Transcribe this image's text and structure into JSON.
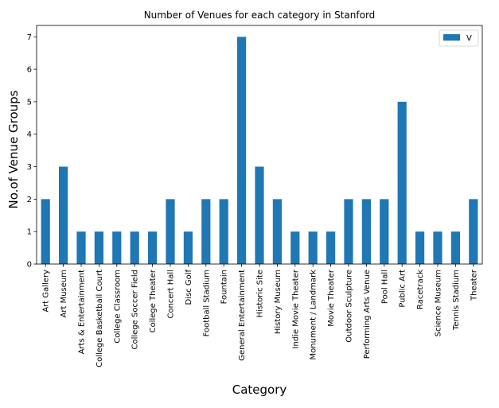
{
  "chart_data": {
    "type": "bar",
    "title": "Number of Venues for each category in Stanford",
    "xlabel": "Category",
    "ylabel": "No.of Venue Groups",
    "categories": [
      "Art Gallery",
      "Art Museum",
      "Arts & Entertainment",
      "College Basketball Court",
      "College Classroom",
      "College Soccer Field",
      "College Theater",
      "Concert Hall",
      "Disc Golf",
      "Football Stadium",
      "Fountain",
      "General Entertainment",
      "Historic Site",
      "History Museum",
      "Indie Movie Theater",
      "Monument / Landmark",
      "Movie Theater",
      "Outdoor Sculpture",
      "Performing Arts Venue",
      "Pool Hall",
      "Public Art",
      "Racetrack",
      "Science Museum",
      "Tennis Stadium",
      "Theater"
    ],
    "series": [
      {
        "name": "V",
        "color": "#1f77b4",
        "values": [
          2,
          3,
          1,
          1,
          1,
          1,
          1,
          2,
          1,
          2,
          2,
          7,
          3,
          2,
          1,
          1,
          1,
          2,
          2,
          2,
          5,
          1,
          1,
          1,
          2
        ]
      }
    ],
    "ylim": [
      0,
      7.35
    ],
    "yticks": [
      0,
      1,
      2,
      3,
      4,
      5,
      6,
      7
    ],
    "grid": false,
    "legend_position": "top-right"
  }
}
